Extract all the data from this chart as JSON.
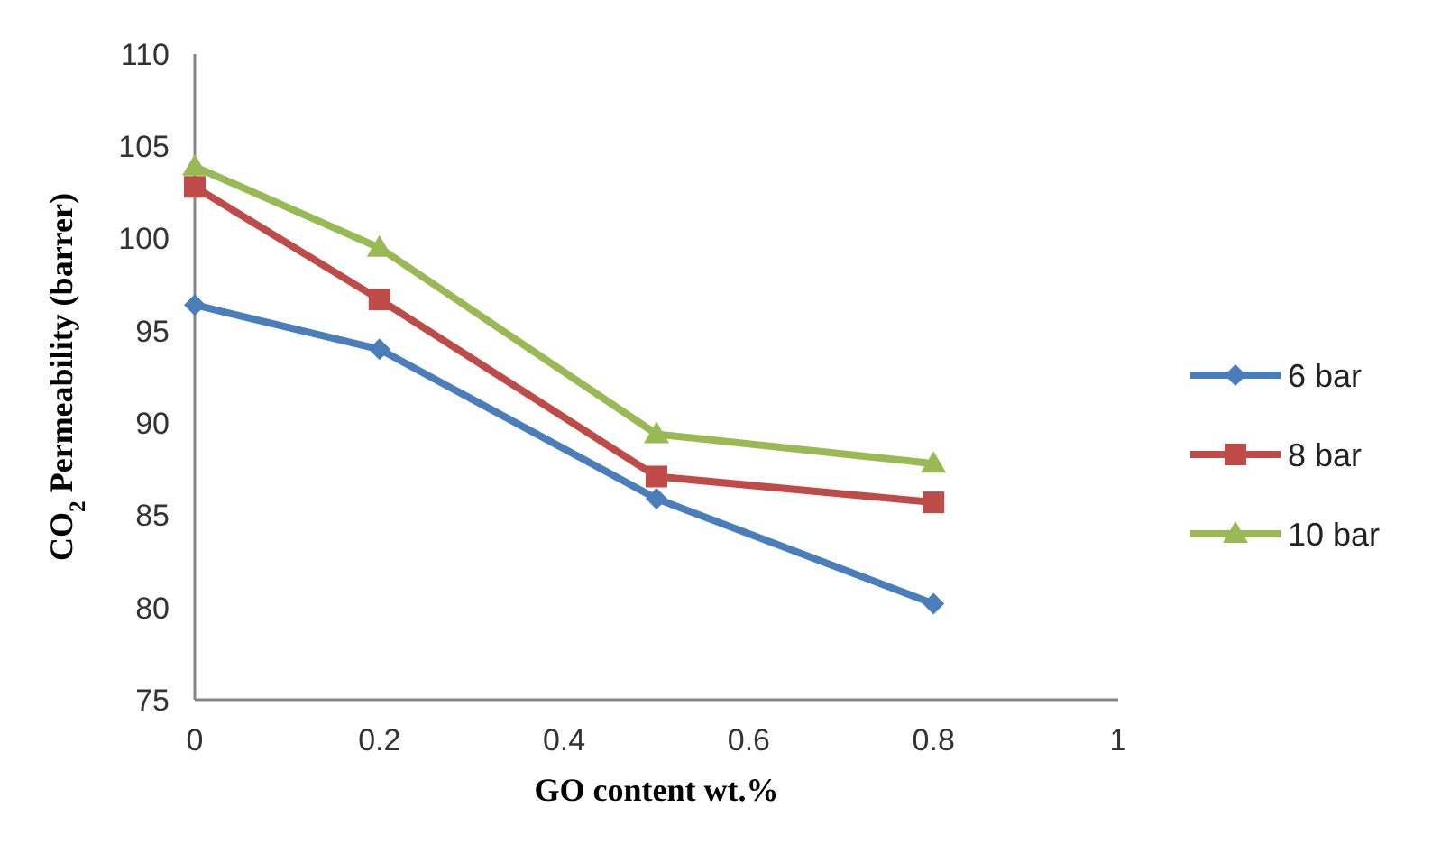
{
  "chart_data": {
    "type": "line",
    "xlabel": "GO content wt.%",
    "ylabel": "CO$_{2}$ Permeability (barrer)",
    "x": [
      0,
      0.2,
      0.5,
      0.8
    ],
    "xlim": [
      0,
      1
    ],
    "xticks": [
      0,
      0.2,
      0.4,
      0.6,
      0.8,
      1
    ],
    "ylim": [
      75,
      110
    ],
    "yticks": [
      75,
      80,
      85,
      90,
      95,
      100,
      105,
      110
    ],
    "grid": false,
    "legend": "right",
    "series": [
      {
        "name": "6 bar",
        "color": "#4a7ebb",
        "marker": "diamond",
        "values": [
          96.4,
          94.0,
          85.9,
          80.2
        ]
      },
      {
        "name": "8 bar",
        "color": "#be4b48",
        "marker": "square",
        "values": [
          102.8,
          96.7,
          87.1,
          85.7
        ]
      },
      {
        "name": "10 bar",
        "color": "#98b954",
        "marker": "triangle",
        "values": [
          103.9,
          99.5,
          89.4,
          87.8
        ]
      }
    ]
  }
}
